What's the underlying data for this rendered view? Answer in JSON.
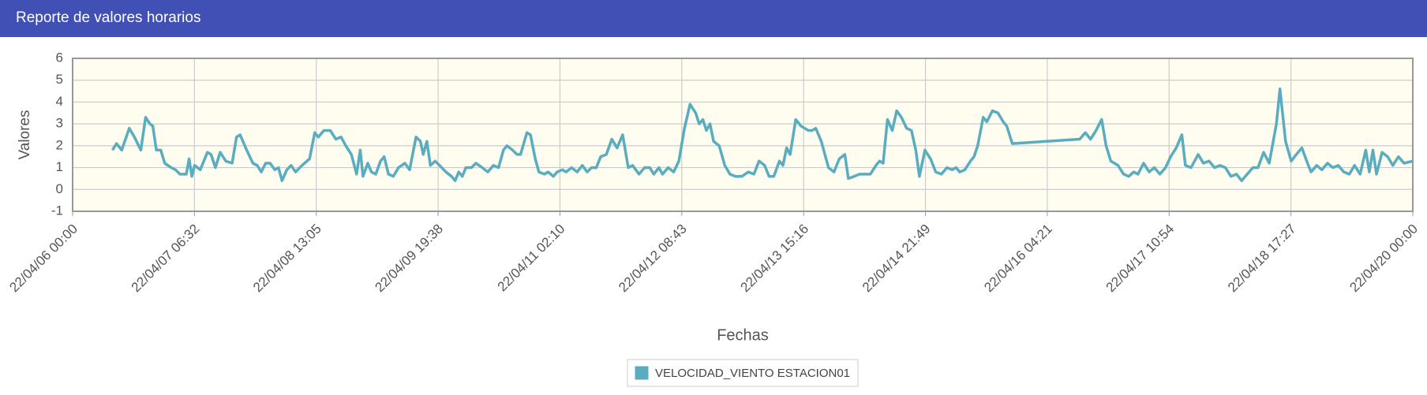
{
  "chart_data": {
    "type": "line",
    "title": "Reporte de valores horarios",
    "x_label": "Fechas",
    "y_label": "Valores",
    "xlim": [
      0,
      336
    ],
    "ylim": [
      -1,
      6
    ],
    "yticks": [
      -1,
      0,
      1,
      2,
      3,
      4,
      5,
      6
    ],
    "xticks": [
      {
        "value": 0,
        "label": "22/04/06 00:00"
      },
      {
        "value": 30.545,
        "label": "22/04/07 06:32"
      },
      {
        "value": 61.091,
        "label": "22/04/08 13:05"
      },
      {
        "value": 91.636,
        "label": "22/04/09 19:38"
      },
      {
        "value": 122.182,
        "label": "22/04/11 02:10"
      },
      {
        "value": 152.727,
        "label": "22/04/12 08:43"
      },
      {
        "value": 183.273,
        "label": "22/04/13 15:16"
      },
      {
        "value": 213.818,
        "label": "22/04/14 21:49"
      },
      {
        "value": 244.364,
        "label": "22/04/16 04:21"
      },
      {
        "value": 274.909,
        "label": "22/04/17 10:54"
      },
      {
        "value": 305.455,
        "label": "22/04/18 17:27"
      },
      {
        "value": 336,
        "label": "22/04/20 00:00"
      }
    ],
    "grid": true,
    "x": [
      10.0,
      11.0,
      12.3,
      14.2,
      15.5,
      17.1,
      18.3,
      19.4,
      20.1,
      21.0,
      22.1,
      23.1,
      24.7,
      25.8,
      26.9,
      28.5,
      29.2,
      29.9,
      30.6,
      32.0,
      33.8,
      34.7,
      35.8,
      37.0,
      38.4,
      40.0,
      41.1,
      42.0,
      43.4,
      45.2,
      46.3,
      47.3,
      48.4,
      49.5,
      50.7,
      51.6,
      52.5,
      53.7,
      54.8,
      55.9,
      57.5,
      59.4,
      60.7,
      61.6,
      63.0,
      64.6,
      66.0,
      67.3,
      68.5,
      69.9,
      71.2,
      72.1,
      72.8,
      74.0,
      74.9,
      76.0,
      77.2,
      78.1,
      79.2,
      80.4,
      81.7,
      83.3,
      84.5,
      86.1,
      87.2,
      87.9,
      88.8,
      89.7,
      90.9,
      92.0,
      93.6,
      95.0,
      95.9,
      96.8,
      97.7,
      98.6,
      100.0,
      101.1,
      102.7,
      104.1,
      105.5,
      106.8,
      108.0,
      108.9,
      110.3,
      111.4,
      112.3,
      113.9,
      114.8,
      116.0,
      116.9,
      118.3,
      119.2,
      120.5,
      121.5,
      122.8,
      123.7,
      125.1,
      126.5,
      127.8,
      129.0,
      130.1,
      131.3,
      132.4,
      133.8,
      135.2,
      136.5,
      137.9,
      139.3,
      140.4,
      142.0,
      143.4,
      144.7,
      145.7,
      147.0,
      147.9,
      149.3,
      150.7,
      152.0,
      153.4,
      154.8,
      156.2,
      157.1,
      158.0,
      158.9,
      159.8,
      160.7,
      162.1,
      163.5,
      164.8,
      166.2,
      167.8,
      169.4,
      170.8,
      172.1,
      173.5,
      174.6,
      175.8,
      177.2,
      178.1,
      179.0,
      179.9,
      181.3,
      182.6,
      184.5,
      185.4,
      186.3,
      187.7,
      189.5,
      190.9,
      192.2,
      193.6,
      194.5,
      195.9,
      197.3,
      198.6,
      200.0,
      201.4,
      202.3,
      203.2,
      204.3,
      205.5,
      206.6,
      207.8,
      209.1,
      210.3,
      211.4,
      212.3,
      213.7,
      215.1,
      216.4,
      217.8,
      219.2,
      220.5,
      221.5,
      222.4,
      223.7,
      225.1,
      226.0,
      226.9,
      228.3,
      229.2,
      230.6,
      232.0,
      233.3,
      234.2,
      235.6,
      252.5,
      253.9,
      255.2,
      256.6,
      258.0,
      259.1,
      260.3,
      262.1,
      263.5,
      264.8,
      266.0,
      267.1,
      268.5,
      269.9,
      271.2,
      272.6,
      274.0,
      275.3,
      276.7,
      278.1,
      279.0,
      280.4,
      282.2,
      283.5,
      284.9,
      286.3,
      287.7,
      289.0,
      290.4,
      291.8,
      293.1,
      294.5,
      295.9,
      297.2,
      298.6,
      300.0,
      301.8,
      302.7,
      304.1,
      305.5,
      306.8,
      308.2,
      309.6,
      310.5,
      311.9,
      313.2,
      314.6,
      316.0,
      317.3,
      318.7,
      320.1,
      321.4,
      322.8,
      324.2,
      325.1,
      326.0,
      326.9,
      328.3,
      329.7,
      331.0,
      332.4,
      333.8,
      336.0
    ],
    "series": [
      {
        "name": "VELOCIDAD_VIENTO ESTACION01",
        "color": "#5aacbf",
        "values": [
          1.8,
          2.1,
          1.8,
          2.8,
          2.4,
          1.8,
          3.3,
          3.0,
          2.9,
          1.8,
          1.8,
          1.2,
          1.0,
          0.9,
          0.7,
          0.7,
          1.4,
          0.6,
          1.1,
          0.9,
          1.7,
          1.6,
          1.0,
          1.7,
          1.3,
          1.2,
          2.4,
          2.5,
          1.9,
          1.2,
          1.1,
          0.8,
          1.2,
          1.2,
          0.9,
          1.0,
          0.4,
          0.9,
          1.1,
          0.8,
          1.1,
          1.4,
          2.6,
          2.4,
          2.7,
          2.7,
          2.3,
          2.4,
          2.0,
          1.6,
          0.7,
          1.8,
          0.6,
          1.2,
          0.8,
          0.7,
          1.3,
          1.5,
          0.7,
          0.6,
          1.0,
          1.2,
          0.9,
          2.4,
          2.2,
          1.6,
          2.2,
          1.1,
          1.3,
          1.1,
          0.8,
          0.6,
          0.4,
          0.8,
          0.6,
          1.0,
          1.0,
          1.2,
          1.0,
          0.8,
          1.1,
          1.0,
          1.8,
          2.0,
          1.8,
          1.6,
          1.6,
          2.6,
          2.5,
          1.4,
          0.8,
          0.7,
          0.8,
          0.6,
          0.8,
          0.9,
          0.8,
          1.0,
          0.8,
          1.1,
          0.8,
          1.0,
          1.0,
          1.5,
          1.6,
          2.3,
          1.9,
          2.5,
          1.0,
          1.1,
          0.7,
          1.0,
          1.0,
          0.7,
          1.0,
          0.7,
          1.0,
          0.8,
          1.3,
          2.8,
          3.9,
          3.5,
          3.0,
          3.2,
          2.7,
          3.0,
          2.2,
          2.0,
          1.1,
          0.7,
          0.6,
          0.6,
          0.8,
          0.7,
          1.3,
          1.1,
          0.6,
          0.6,
          1.3,
          1.1,
          1.9,
          1.6,
          3.2,
          2.9,
          2.7,
          2.7,
          2.8,
          2.2,
          1.0,
          0.8,
          1.4,
          1.6,
          0.5,
          0.6,
          0.7,
          0.7,
          0.7,
          1.1,
          1.3,
          1.2,
          3.2,
          2.7,
          3.6,
          3.3,
          2.8,
          2.7,
          1.8,
          0.6,
          1.8,
          1.4,
          0.8,
          0.7,
          1.0,
          0.9,
          1.0,
          0.8,
          0.9,
          1.3,
          1.5,
          2.0,
          3.3,
          3.1,
          3.6,
          3.5,
          3.1,
          2.9,
          2.1,
          2.3,
          2.6,
          2.3,
          2.7,
          3.2,
          2.0,
          1.3,
          1.1,
          0.7,
          0.6,
          0.8,
          0.7,
          1.2,
          0.8,
          1.0,
          0.7,
          1.0,
          1.5,
          1.9,
          2.5,
          1.1,
          1.0,
          1.6,
          1.2,
          1.3,
          1.0,
          1.1,
          1.0,
          0.6,
          0.7,
          0.4,
          0.7,
          1.0,
          1.0,
          1.7,
          1.2,
          3.0,
          4.6,
          2.2,
          1.3,
          1.6,
          1.9,
          1.2,
          0.8,
          1.1,
          0.9,
          1.2,
          1.0,
          1.1,
          0.8,
          0.7,
          1.1,
          0.7,
          1.8,
          0.8,
          1.8,
          0.7,
          1.7,
          1.5,
          1.1,
          1.5,
          1.2,
          1.3
        ]
      }
    ]
  }
}
